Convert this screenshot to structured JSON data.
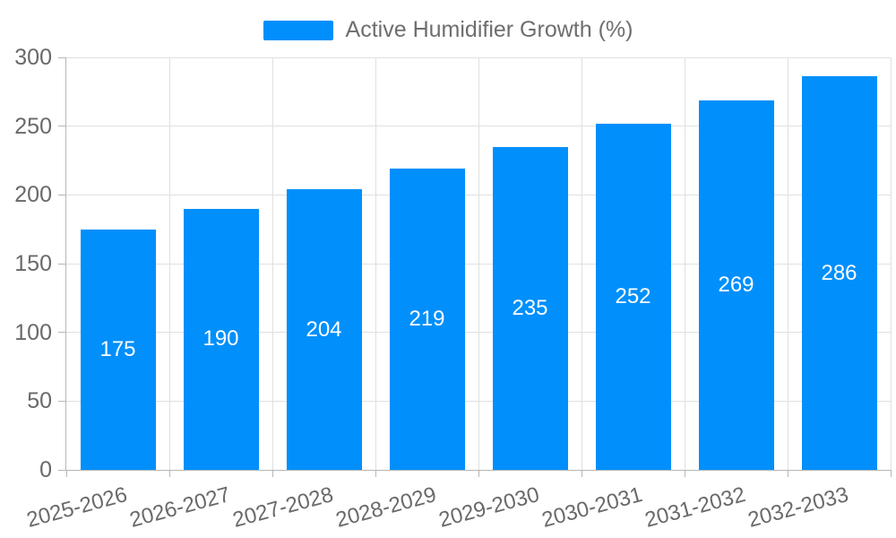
{
  "chart_data": {
    "type": "bar",
    "title": "",
    "xlabel": "",
    "ylabel": "",
    "legend": {
      "position": "top",
      "entries": [
        "Active Humidifier Growth (%)"
      ]
    },
    "categories": [
      "2025-2026",
      "2026-2027",
      "2027-2028",
      "2028-2029",
      "2029-2030",
      "2030-2031",
      "2031-2032",
      "2032-2033"
    ],
    "series": [
      {
        "name": "Active Humidifier Growth (%)",
        "values": [
          175,
          190,
          204,
          219,
          235,
          252,
          269,
          286
        ]
      }
    ],
    "value_labels_shown": true,
    "yticks": [
      0,
      50,
      100,
      150,
      200,
      250,
      300
    ],
    "ylim": [
      0,
      300
    ],
    "grid": true,
    "colors": {
      "bar": "#008FFB",
      "value_label": "#ffffff",
      "axis_label": "#68696b",
      "gridline": "#e0e0e0",
      "axis_line": "#b6b6b6",
      "legend_text": "#6e6e6e"
    }
  }
}
